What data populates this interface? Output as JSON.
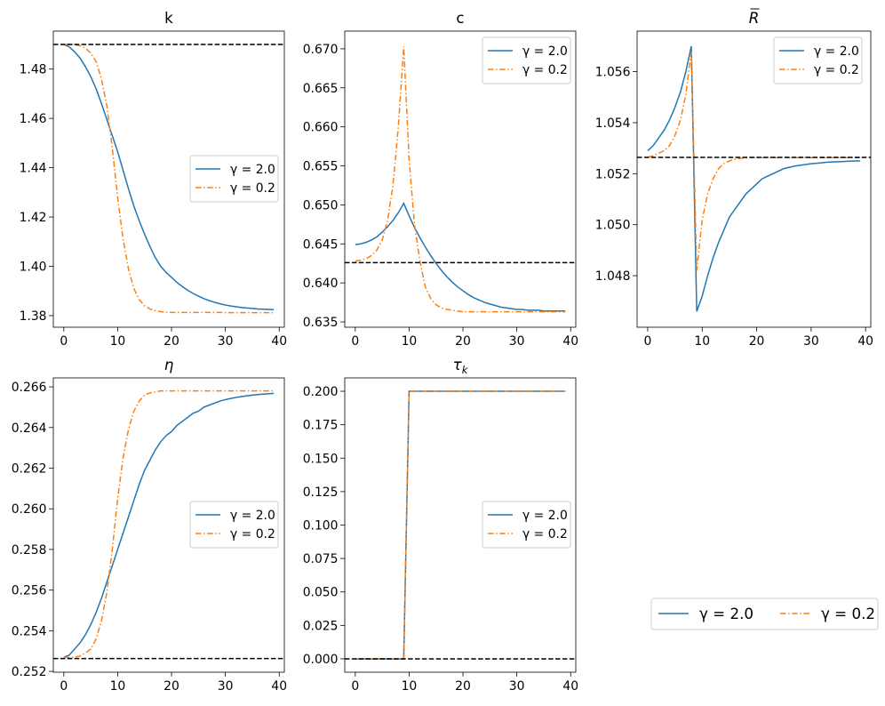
{
  "colors": {
    "series_1": "#1f77b4",
    "series_2": "#ff7f0e",
    "steady_state": "#000000"
  },
  "legend_entries": [
    "γ = 2.0",
    "γ = 0.2"
  ],
  "chart_data": [
    {
      "type": "line",
      "title": "k",
      "title_sub": "",
      "title_bar": false,
      "x": [
        0,
        1,
        2,
        3,
        4,
        5,
        6,
        7,
        8,
        9,
        10,
        11,
        12,
        13,
        14,
        15,
        16,
        17,
        18,
        19,
        20,
        21,
        22,
        23,
        24,
        25,
        26,
        27,
        28,
        29,
        30,
        31,
        32,
        33,
        34,
        35,
        36,
        37,
        38,
        39
      ],
      "xlim": [
        -1.95,
        40.95
      ],
      "ylim": [
        1.3753,
        1.4954
      ],
      "xticks": [
        "0",
        "10",
        "20",
        "30",
        "40"
      ],
      "yticks": [
        "1.38",
        "1.40",
        "1.42",
        "1.44",
        "1.46",
        "1.48"
      ],
      "steady_state": 1.49,
      "legend": "center-right",
      "series": [
        {
          "name": "γ = 2.0",
          "style": "solid",
          "values": [
            1.49,
            1.489,
            1.487,
            1.4845,
            1.481,
            1.477,
            1.472,
            1.466,
            1.4595,
            1.453,
            1.4465,
            1.439,
            1.4315,
            1.4245,
            1.4185,
            1.413,
            1.408,
            1.4035,
            1.4,
            1.3975,
            1.3955,
            1.3935,
            1.3918,
            1.3903,
            1.389,
            1.3879,
            1.3869,
            1.3861,
            1.3854,
            1.3848,
            1.3843,
            1.3839,
            1.3836,
            1.3833,
            1.3831,
            1.3829,
            1.3827,
            1.3826,
            1.3825,
            1.3824
          ]
        },
        {
          "name": "γ = 0.2",
          "style": "dashdot",
          "values": [
            1.49,
            1.49,
            1.4899,
            1.4895,
            1.4885,
            1.4865,
            1.483,
            1.476,
            1.465,
            1.448,
            1.428,
            1.411,
            1.399,
            1.391,
            1.3865,
            1.384,
            1.3827,
            1.382,
            1.3816,
            1.3814,
            1.3813,
            1.3813,
            1.3813,
            1.3813,
            1.3813,
            1.3813,
            1.3813,
            1.3813,
            1.3813,
            1.3813,
            1.3812,
            1.3812,
            1.3812,
            1.3812,
            1.3812,
            1.3812,
            1.3812,
            1.3812,
            1.3812,
            1.3812
          ]
        }
      ]
    },
    {
      "type": "line",
      "title": "c",
      "title_sub": "",
      "title_bar": false,
      "x": [
        0,
        1,
        2,
        3,
        4,
        5,
        6,
        7,
        8,
        9,
        10,
        11,
        12,
        13,
        14,
        15,
        16,
        17,
        18,
        19,
        20,
        21,
        22,
        23,
        24,
        25,
        26,
        27,
        28,
        29,
        30,
        31,
        32,
        33,
        34,
        35,
        36,
        37,
        38,
        39
      ],
      "xlim": [
        -1.95,
        40.95
      ],
      "ylim": [
        0.63432,
        0.67227
      ],
      "xticks": [
        "0",
        "10",
        "20",
        "30",
        "40"
      ],
      "yticks": [
        "0.635",
        "0.640",
        "0.645",
        "0.650",
        "0.655",
        "0.660",
        "0.665",
        "0.670"
      ],
      "steady_state": 0.6426,
      "legend": "top-right",
      "series": [
        {
          "name": "γ = 2.0",
          "style": "solid",
          "values": [
            0.6449,
            0.645,
            0.6452,
            0.6455,
            0.6459,
            0.6465,
            0.6472,
            0.648,
            0.649,
            0.6502,
            0.6486,
            0.6471,
            0.6458,
            0.6446,
            0.6435,
            0.6425,
            0.6416,
            0.6408,
            0.6401,
            0.6395,
            0.639,
            0.6385,
            0.6381,
            0.6378,
            0.6375,
            0.6373,
            0.6371,
            0.6369,
            0.6368,
            0.6367,
            0.6366,
            0.6366,
            0.6365,
            0.6365,
            0.6365,
            0.6364,
            0.6364,
            0.6364,
            0.6364,
            0.6364
          ]
        },
        {
          "name": "γ = 0.2",
          "style": "dashdot",
          "values": [
            0.6428,
            0.6429,
            0.6431,
            0.6435,
            0.6442,
            0.6455,
            0.648,
            0.6525,
            0.66,
            0.6703,
            0.6558,
            0.6475,
            0.6428,
            0.6395,
            0.638,
            0.6372,
            0.6368,
            0.6366,
            0.6365,
            0.6364,
            0.6363,
            0.6363,
            0.6363,
            0.6363,
            0.6363,
            0.6363,
            0.6363,
            0.6363,
            0.6363,
            0.6363,
            0.6363,
            0.6363,
            0.6363,
            0.6363,
            0.6363,
            0.6363,
            0.6363,
            0.6363,
            0.6363,
            0.6363
          ]
        }
      ]
    },
    {
      "type": "line",
      "title": "R",
      "title_sub": "",
      "title_bar": true,
      "x": [
        0,
        1,
        2,
        3,
        4,
        5,
        6,
        7,
        8,
        9,
        10,
        11,
        12,
        13,
        14,
        15,
        16,
        17,
        18,
        19,
        20,
        21,
        22,
        23,
        24,
        25,
        26,
        27,
        28,
        29,
        30,
        31,
        32,
        33,
        34,
        35,
        36,
        37,
        38,
        39
      ],
      "xlim": [
        -1.95,
        40.95
      ],
      "ylim": [
        1.04598,
        1.05759
      ],
      "xticks": [
        "0",
        "10",
        "20",
        "30",
        "40"
      ],
      "yticks": [
        "1.048",
        "1.050",
        "1.052",
        "1.054",
        "1.056"
      ],
      "steady_state": 1.05264,
      "legend": "top-right",
      "series": [
        {
          "name": "γ = 2.0",
          "style": "solid",
          "values": [
            1.0529,
            1.0531,
            1.0534,
            1.0537,
            1.0541,
            1.0546,
            1.0552,
            1.056,
            1.057,
            1.0466,
            1.0472,
            1.048,
            1.0487,
            1.0493,
            1.0498,
            1.0503,
            1.0506,
            1.0509,
            1.0512,
            1.0514,
            1.0516,
            1.0518,
            1.0519,
            1.052,
            1.0521,
            1.0522,
            1.05225,
            1.0523,
            1.05233,
            1.05236,
            1.05239,
            1.05241,
            1.05243,
            1.05245,
            1.05246,
            1.05247,
            1.05248,
            1.05249,
            1.0525,
            1.0525
          ]
        },
        {
          "name": "γ = 0.2",
          "style": "dashdot",
          "values": [
            1.05265,
            1.0527,
            1.0528,
            1.0529,
            1.0531,
            1.0535,
            1.0541,
            1.0551,
            1.0568,
            1.0482,
            1.0502,
            1.0512,
            1.0518,
            1.0522,
            1.0524,
            1.0525,
            1.05257,
            1.0526,
            1.05262,
            1.05263,
            1.05263,
            1.05263,
            1.05263,
            1.05263,
            1.05263,
            1.05263,
            1.05263,
            1.05263,
            1.05263,
            1.05263,
            1.05263,
            1.05263,
            1.05263,
            1.05263,
            1.05263,
            1.05263,
            1.05263,
            1.05263,
            1.05263,
            1.05263
          ]
        }
      ]
    },
    {
      "type": "line",
      "title": "η",
      "title_sub": "",
      "title_bar": false,
      "x": [
        0,
        1,
        2,
        3,
        4,
        5,
        6,
        7,
        8,
        9,
        10,
        11,
        12,
        13,
        14,
        15,
        16,
        17,
        18,
        19,
        20,
        21,
        22,
        23,
        24,
        25,
        26,
        27,
        28,
        29,
        30,
        31,
        32,
        33,
        34,
        35,
        36,
        37,
        38,
        39
      ],
      "xlim": [
        -1.95,
        40.95
      ],
      "ylim": [
        0.25196,
        0.26644
      ],
      "xticks": [
        "0",
        "10",
        "20",
        "30",
        "40"
      ],
      "yticks": [
        "0.252",
        "0.254",
        "0.256",
        "0.258",
        "0.260",
        "0.262",
        "0.264",
        "0.266"
      ],
      "steady_state": 0.25263,
      "legend": "center-right",
      "series": [
        {
          "name": "γ = 2.0",
          "style": "solid",
          "values": [
            0.2527,
            0.2528,
            0.2531,
            0.2534,
            0.2538,
            0.2543,
            0.2549,
            0.2556,
            0.2564,
            0.2572,
            0.258,
            0.2588,
            0.2596,
            0.2604,
            0.2612,
            0.2619,
            0.2624,
            0.2629,
            0.2633,
            0.2636,
            0.2638,
            0.2641,
            0.2643,
            0.2645,
            0.2647,
            0.2648,
            0.265,
            0.2651,
            0.2652,
            0.2653,
            0.26537,
            0.26543,
            0.26548,
            0.26552,
            0.26556,
            0.26559,
            0.26562,
            0.26564,
            0.26566,
            0.26568
          ]
        },
        {
          "name": "γ = 0.2",
          "style": "dashdot",
          "values": [
            0.2527,
            0.2527,
            0.2527,
            0.25275,
            0.2529,
            0.2531,
            0.2536,
            0.2545,
            0.2559,
            0.258,
            0.2605,
            0.2625,
            0.2639,
            0.2648,
            0.2653,
            0.2656,
            0.2657,
            0.26575,
            0.2658,
            0.2658,
            0.2658,
            0.2658,
            0.2658,
            0.2658,
            0.2658,
            0.2658,
            0.2658,
            0.2658,
            0.2658,
            0.2658,
            0.2658,
            0.2658,
            0.2658,
            0.2658,
            0.2658,
            0.2658,
            0.2658,
            0.2658,
            0.2658,
            0.2658
          ]
        }
      ]
    },
    {
      "type": "line",
      "title": "τ",
      "title_sub": "k",
      "title_bar": false,
      "x": [
        0,
        1,
        2,
        3,
        4,
        5,
        6,
        7,
        8,
        9,
        10,
        11,
        12,
        13,
        14,
        15,
        16,
        17,
        18,
        19,
        20,
        21,
        22,
        23,
        24,
        25,
        26,
        27,
        28,
        29,
        30,
        31,
        32,
        33,
        34,
        35,
        36,
        37,
        38,
        39
      ],
      "xlim": [
        -1.95,
        40.95
      ],
      "ylim": [
        -0.01,
        0.21
      ],
      "xticks": [
        "0",
        "10",
        "20",
        "30",
        "40"
      ],
      "yticks": [
        "0.000",
        "0.025",
        "0.050",
        "0.075",
        "0.100",
        "0.125",
        "0.150",
        "0.175",
        "0.200"
      ],
      "steady_state": 0.0,
      "legend": "center-right",
      "series": [
        {
          "name": "γ = 2.0",
          "style": "solid",
          "values": [
            0,
            0,
            0,
            0,
            0,
            0,
            0,
            0,
            0,
            0,
            0.2,
            0.2,
            0.2,
            0.2,
            0.2,
            0.2,
            0.2,
            0.2,
            0.2,
            0.2,
            0.2,
            0.2,
            0.2,
            0.2,
            0.2,
            0.2,
            0.2,
            0.2,
            0.2,
            0.2,
            0.2,
            0.2,
            0.2,
            0.2,
            0.2,
            0.2,
            0.2,
            0.2,
            0.2,
            0.2
          ]
        },
        {
          "name": "γ = 0.2",
          "style": "dashdot",
          "values": [
            0,
            0,
            0,
            0,
            0,
            0,
            0,
            0,
            0,
            0,
            0.2,
            0.2,
            0.2,
            0.2,
            0.2,
            0.2,
            0.2,
            0.2,
            0.2,
            0.2,
            0.2,
            0.2,
            0.2,
            0.2,
            0.2,
            0.2,
            0.2,
            0.2,
            0.2,
            0.2,
            0.2,
            0.2,
            0.2,
            0.2,
            0.2,
            0.2,
            0.2,
            0.2,
            0.2,
            0.2
          ]
        }
      ]
    }
  ]
}
